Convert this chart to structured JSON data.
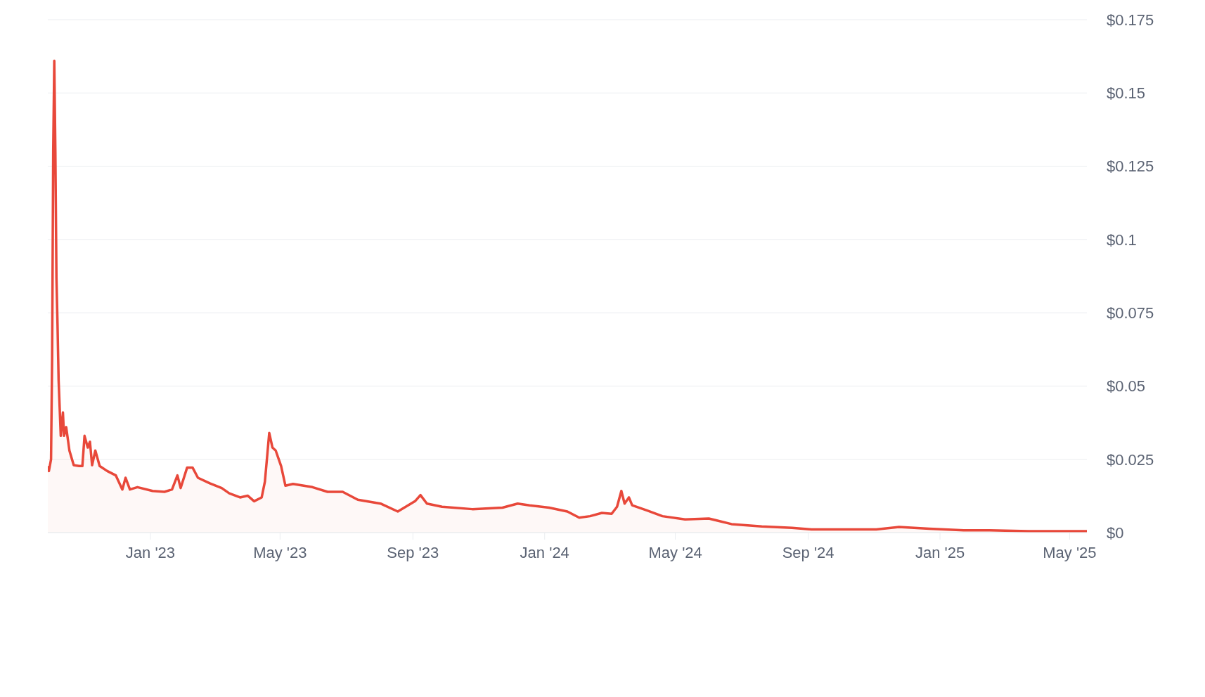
{
  "chart_data": {
    "type": "area",
    "x": [
      "2022-09-28",
      "2022-09-29",
      "2022-10-01",
      "2022-10-02",
      "2022-10-03",
      "2022-10-04",
      "2022-10-05",
      "2022-10-06",
      "2022-10-07",
      "2022-10-08",
      "2022-10-10",
      "2022-10-12",
      "2022-10-13",
      "2022-10-15",
      "2022-10-18",
      "2022-10-22",
      "2022-10-27",
      "2022-10-30",
      "2022-11-01",
      "2022-11-04",
      "2022-11-06",
      "2022-11-08",
      "2022-11-11",
      "2022-11-15",
      "2022-11-22",
      "2022-11-30",
      "2022-12-06",
      "2022-12-09",
      "2022-12-13",
      "2022-12-20",
      "2023-01-03",
      "2023-01-14",
      "2023-01-21",
      "2023-01-26",
      "2023-01-29",
      "2023-02-04",
      "2023-02-09",
      "2023-02-14",
      "2023-02-25",
      "2023-03-08",
      "2023-03-15",
      "2023-03-25",
      "2023-04-01",
      "2023-04-07",
      "2023-04-14",
      "2023-04-17",
      "2023-04-21",
      "2023-04-24",
      "2023-04-27",
      "2023-05-02",
      "2023-05-06",
      "2023-05-13",
      "2023-05-31",
      "2023-06-14",
      "2023-06-28",
      "2023-07-12",
      "2023-08-02",
      "2023-08-18",
      "2023-08-24",
      "2023-09-03",
      "2023-09-08",
      "2023-09-14",
      "2023-09-28",
      "2023-10-26",
      "2023-11-23",
      "2023-12-07",
      "2023-12-18",
      "2024-01-05",
      "2024-01-22",
      "2024-02-02",
      "2024-02-12",
      "2024-02-23",
      "2024-03-03",
      "2024-03-08",
      "2024-03-12",
      "2024-03-15",
      "2024-03-19",
      "2024-03-22",
      "2024-04-05",
      "2024-04-19",
      "2024-05-10",
      "2024-06-01",
      "2024-06-22",
      "2024-07-20",
      "2024-08-17",
      "2024-09-04",
      "2024-09-28",
      "2024-11-03",
      "2024-11-24",
      "2024-12-22",
      "2025-01-23",
      "2025-02-16",
      "2025-03-24",
      "2025-05-17"
    ],
    "series": [
      {
        "color": "#e8483a",
        "values": [
          0.0227,
          0.021,
          0.025,
          0.06,
          0.13,
          0.161,
          0.13,
          0.087,
          0.071,
          0.052,
          0.033,
          0.041,
          0.033,
          0.036,
          0.028,
          0.023,
          0.0227,
          0.0227,
          0.033,
          0.029,
          0.031,
          0.023,
          0.028,
          0.0227,
          0.021,
          0.0195,
          0.0147,
          0.0187,
          0.0147,
          0.0155,
          0.0142,
          0.0139,
          0.0147,
          0.0195,
          0.0152,
          0.0222,
          0.0222,
          0.0187,
          0.0168,
          0.0152,
          0.0134,
          0.012,
          0.0126,
          0.0107,
          0.012,
          0.0174,
          0.034,
          0.029,
          0.028,
          0.0227,
          0.016,
          0.0166,
          0.0155,
          0.0139,
          0.0139,
          0.0112,
          0.0099,
          0.0072,
          0.0085,
          0.0107,
          0.0128,
          0.0099,
          0.0088,
          0.008,
          0.0085,
          0.0099,
          0.0093,
          0.0085,
          0.0072,
          0.0051,
          0.0056,
          0.0067,
          0.0064,
          0.0088,
          0.0142,
          0.0099,
          0.012,
          0.0093,
          0.0075,
          0.0056,
          0.0045,
          0.0048,
          0.0029,
          0.0021,
          0.0016,
          0.0011,
          0.0011,
          0.0011,
          0.0019,
          0.0013,
          0.0008,
          0.0008,
          0.0005,
          0.0005
        ]
      }
    ],
    "xlim": [
      "2022-09-28",
      "2025-05-17"
    ],
    "xticks": [
      {
        "value": "2023-01-01",
        "label": "Jan '23"
      },
      {
        "value": "2023-05-01",
        "label": "May '23"
      },
      {
        "value": "2023-09-01",
        "label": "Sep '23"
      },
      {
        "value": "2024-01-01",
        "label": "Jan '24"
      },
      {
        "value": "2024-05-01",
        "label": "May '24"
      },
      {
        "value": "2024-09-01",
        "label": "Sep '24"
      },
      {
        "value": "2025-01-01",
        "label": "Jan '25"
      },
      {
        "value": "2025-05-01",
        "label": "May '25"
      }
    ],
    "ylim": [
      0,
      0.175
    ],
    "yticks": [
      {
        "value": 0,
        "label": "$0"
      },
      {
        "value": 0.025,
        "label": "$0.025"
      },
      {
        "value": 0.05,
        "label": "$0.05"
      },
      {
        "value": 0.075,
        "label": "$0.075"
      },
      {
        "value": 0.1,
        "label": "$0.1"
      },
      {
        "value": 0.125,
        "label": "$0.125"
      },
      {
        "value": 0.15,
        "label": "$0.15"
      },
      {
        "value": 0.175,
        "label": "$0.175"
      }
    ],
    "grid": "y",
    "legend": false
  }
}
